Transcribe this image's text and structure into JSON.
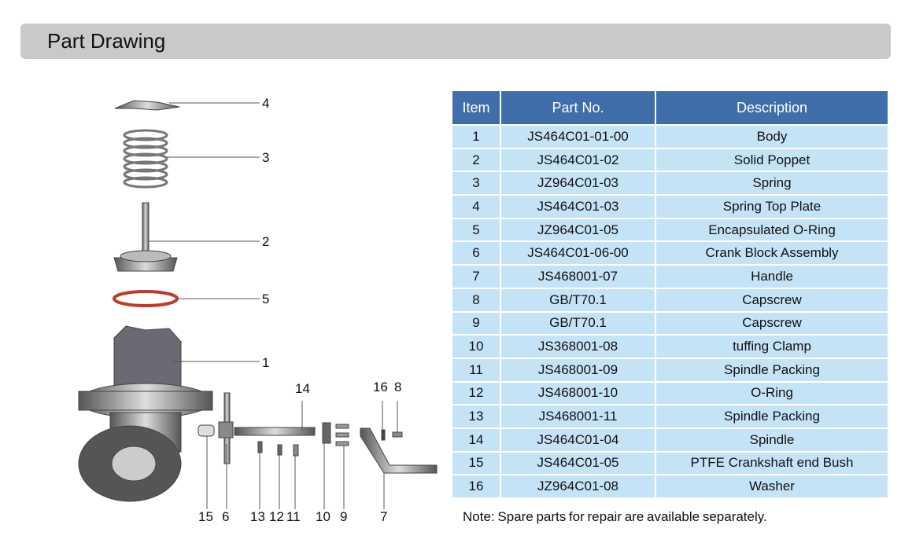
{
  "header": {
    "title": "Part Drawing"
  },
  "drawing": {
    "callouts": [
      "4",
      "3",
      "2",
      "5",
      "1",
      "14",
      "16",
      "8",
      "15",
      "6",
      "13",
      "12",
      "11",
      "10",
      "9",
      "7"
    ]
  },
  "table": {
    "columns": [
      "Item",
      "Part No.",
      "Description"
    ],
    "rows": [
      [
        "1",
        "JS464C01-01-00",
        "Body"
      ],
      [
        "2",
        "JS464C01-02",
        "Solid Poppet"
      ],
      [
        "3",
        "JZ964C01-03",
        "Spring"
      ],
      [
        "4",
        "JS464C01-03",
        "Spring Top Plate"
      ],
      [
        "5",
        "JZ964C01-05",
        "Encapsulated O-Ring"
      ],
      [
        "6",
        "JS464C01-06-00",
        "Crank Block Assembly"
      ],
      [
        "7",
        "JS468001-07",
        "Handle"
      ],
      [
        "8",
        "GB/T70.1",
        "Capscrew"
      ],
      [
        "9",
        "GB/T70.1",
        "Capscrew"
      ],
      [
        "10",
        "JS368001-08",
        "tuffing Clamp"
      ],
      [
        "11",
        "JS468001-09",
        "Spindle Packing"
      ],
      [
        "12",
        "JS468001-10",
        "O-Ring"
      ],
      [
        "13",
        "JS468001-11",
        "Spindle Packing"
      ],
      [
        "14",
        "JS464C01-04",
        "Spindle"
      ],
      [
        "15",
        "JS464C01-05",
        "PTFE Crankshaft end Bush"
      ],
      [
        "16",
        "JZ964C01-08",
        "Washer"
      ]
    ]
  },
  "note": "Note: Spare parts for repair are available separately.",
  "colors": {
    "header_bg": "#3f6eab",
    "row_bg": "#c5e3f7",
    "title_bar": "#c9c9c9",
    "o_ring": "#c0392b"
  }
}
